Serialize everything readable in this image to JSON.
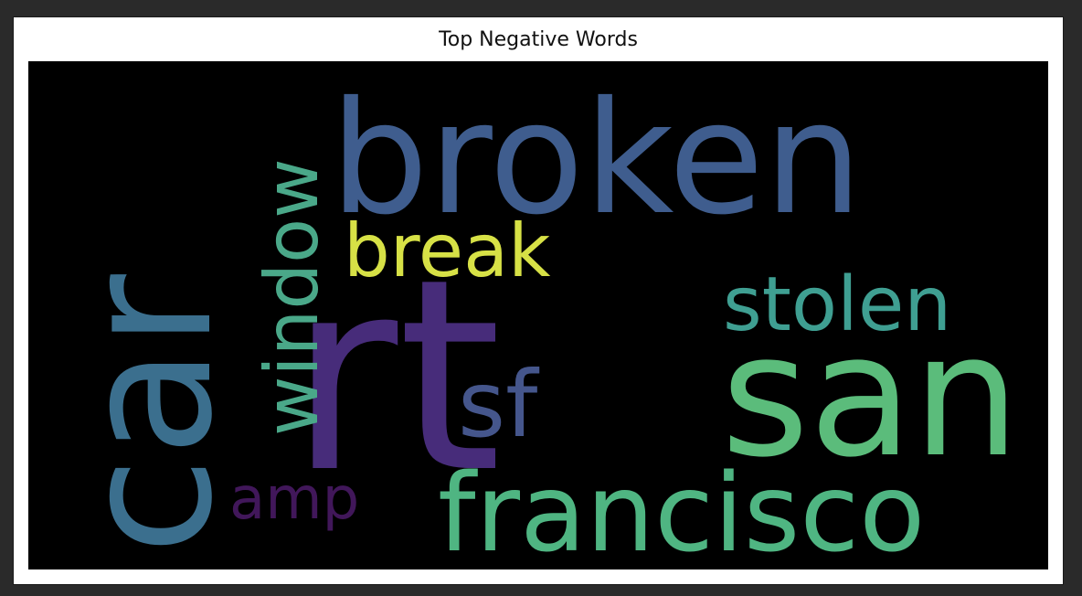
{
  "chart_data": {
    "type": "wordcloud",
    "title": "Top Negative Words",
    "background": "#000000",
    "colormap": "viridis",
    "words": [
      {
        "text": "rt",
        "color": "#472c7a"
      },
      {
        "text": "broken",
        "color": "#3f5d8e"
      },
      {
        "text": "car",
        "color": "#3b6f8e"
      },
      {
        "text": "san",
        "color": "#5bbc7b"
      },
      {
        "text": "francisco",
        "color": "#4fb582"
      },
      {
        "text": "stolen",
        "color": "#3f9f92"
      },
      {
        "text": "window",
        "color": "#4aa889"
      },
      {
        "text": "break",
        "color": "#d7e146"
      },
      {
        "text": "sf",
        "color": "#45568c"
      },
      {
        "text": "amp",
        "color": "#41175a"
      }
    ]
  }
}
